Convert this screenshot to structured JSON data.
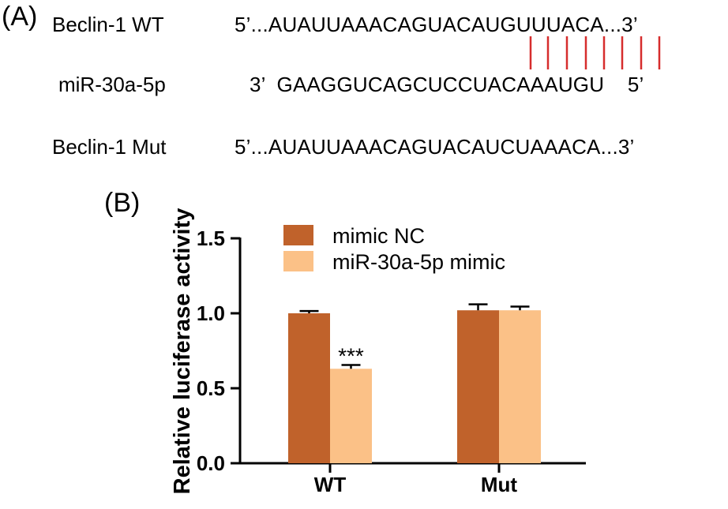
{
  "panel_a": {
    "label": "(A)",
    "rows": [
      {
        "name": "Beclin-1 WT",
        "sequence": "5’...AUAUUAAACAGUACAUGUUUACA...3’"
      },
      {
        "name": "miR-30a-5p",
        "sequence": "3’  GAAGGUCAGCUCCUACAAAUGU    5’"
      },
      {
        "name": "Beclin-1 Mut",
        "sequence": "5’...AUAUUAAACAGUACAUCUAAACA...3’"
      }
    ],
    "pairing_color": "#d62d2d"
  },
  "panel_b": {
    "label": "(B)"
  },
  "chart_data": {
    "type": "bar",
    "categories": [
      "WT",
      "Mut"
    ],
    "series": [
      {
        "name": "mimic NC",
        "color": "#c0622b",
        "values": [
          1.0,
          1.02
        ],
        "errors": [
          0.015,
          0.04
        ]
      },
      {
        "name": "miR-30a-5p mimic",
        "color": "#fbc187",
        "values": [
          0.63,
          1.02
        ],
        "errors": [
          0.025,
          0.025
        ]
      }
    ],
    "annotations": [
      {
        "category": "WT",
        "series": "miR-30a-5p mimic",
        "text": "***"
      }
    ],
    "ylabel": "Relative luciferase activity",
    "xlabel": "",
    "ylim": [
      0,
      1.5
    ],
    "yticks": [
      "0.0",
      "0.5",
      "1.0",
      "1.5"
    ],
    "grid": false,
    "legend": "top-left"
  }
}
